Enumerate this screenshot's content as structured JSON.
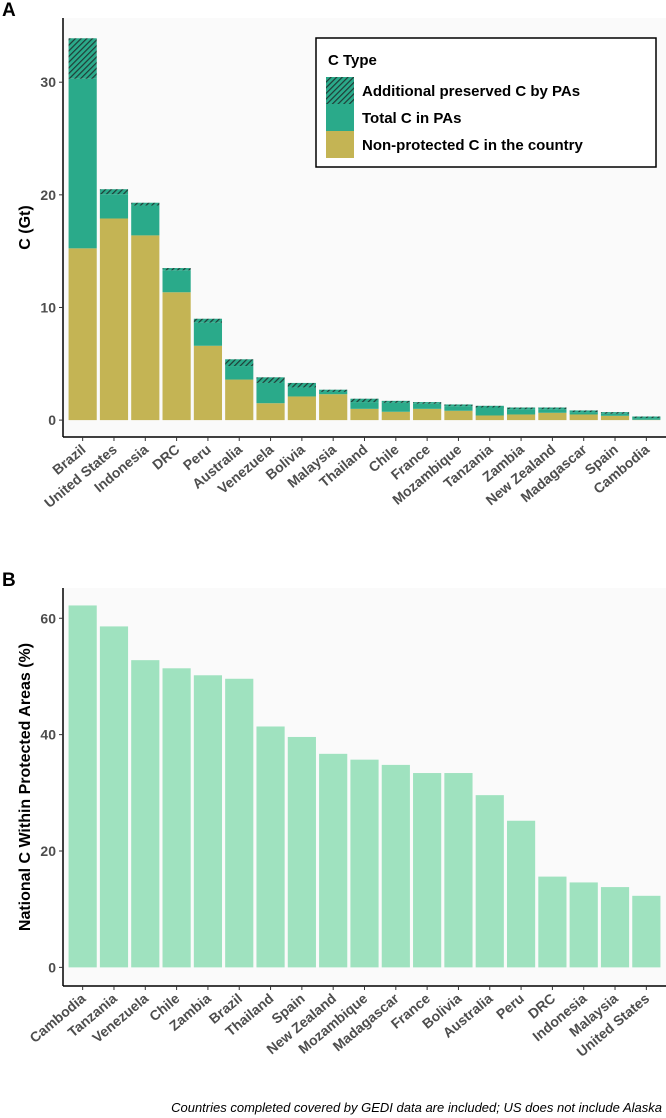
{
  "footnote": "Countries completed covered by GEDI data are included; US does not include Alaska",
  "colors": {
    "non_protected": "#c4b454",
    "total_pa": "#2aaa8a",
    "additional": "#2f5f55",
    "pct": "#9fe2bf",
    "panel_bg": "#fafafa"
  },
  "chart_data": [
    {
      "panel_label": "A",
      "type": "bar",
      "stacked": true,
      "ylabel": "C (Gt)",
      "xlabel": "",
      "ylim": [
        -1.5,
        35.7
      ],
      "yticks": [
        0,
        10,
        20,
        30
      ],
      "legend_title": "C Type",
      "legend_position": "top-right",
      "categories": [
        "Brazil",
        "United States",
        "Indonesia",
        "DRC",
        "Peru",
        "Australia",
        "Venezuela",
        "Bolivia",
        "Malaysia",
        "Thailand",
        "Chile",
        "France",
        "Mozambique",
        "Tanzania",
        "Zambia",
        "New Zealand",
        "Madagascar",
        "Spain",
        "Cambodia"
      ],
      "series": [
        {
          "name": "Non-protected C in the country",
          "values": [
            15.25,
            17.9,
            16.4,
            11.35,
            6.6,
            3.6,
            1.5,
            2.1,
            2.3,
            1.0,
            0.74,
            1.0,
            0.83,
            0.41,
            0.5,
            0.65,
            0.5,
            0.38,
            0.03
          ]
        },
        {
          "name": "Total C in PAs",
          "values": [
            15.05,
            2.16,
            2.65,
            1.95,
            2.05,
            1.2,
            1.8,
            0.8,
            0.2,
            0.6,
            0.79,
            0.45,
            0.41,
            0.71,
            0.47,
            0.32,
            0.21,
            0.18,
            0.15
          ]
        },
        {
          "name": "Additional preserved C by PAs",
          "values": [
            3.6,
            0.44,
            0.25,
            0.2,
            0.35,
            0.6,
            0.5,
            0.4,
            0.2,
            0.3,
            0.18,
            0.15,
            0.15,
            0.15,
            0.15,
            0.15,
            0.15,
            0.15,
            0.14
          ]
        }
      ]
    },
    {
      "panel_label": "B",
      "type": "bar",
      "ylabel": "National C Within Protected Areas (%)",
      "xlabel": "",
      "ylim": [
        -3.2,
        65.2
      ],
      "yticks": [
        0,
        20,
        40,
        60
      ],
      "categories": [
        "Cambodia",
        "Tanzania",
        "Venezuela",
        "Chile",
        "Zambia",
        "Brazil",
        "Thailand",
        "Spain",
        "New Zealand",
        "Mozambique",
        "Madagascar",
        "France",
        "Bolivia",
        "Australia",
        "Peru",
        "DRC",
        "Indonesia",
        "Malaysia",
        "United States"
      ],
      "values": [
        62.2,
        58.6,
        52.8,
        51.4,
        50.2,
        49.6,
        41.4,
        39.6,
        36.7,
        35.7,
        34.8,
        33.4,
        33.4,
        29.6,
        25.2,
        15.6,
        14.6,
        13.8,
        12.3
      ]
    }
  ]
}
